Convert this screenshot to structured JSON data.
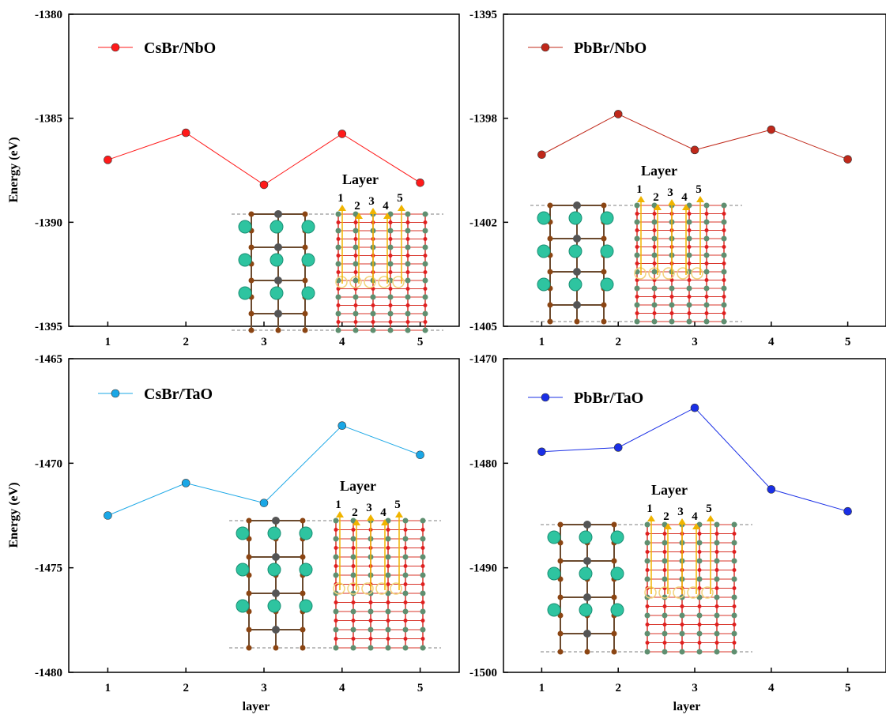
{
  "chart_data": [
    {
      "type": "line",
      "series": [
        {
          "name": "CsBr/NbO",
          "color": "#ff1a1a",
          "x": [
            1,
            2,
            3,
            4,
            5
          ],
          "y": [
            -1387.0,
            -1385.7,
            -1388.2,
            -1385.75,
            -1388.1
          ]
        }
      ],
      "xlim": [
        0.5,
        5.5
      ],
      "ylim": [
        -1395,
        -1380
      ],
      "yticks": [
        "-1380",
        "-1385",
        "-1390",
        "-1395"
      ],
      "xticks": [
        "1",
        "2",
        "3",
        "4",
        "5"
      ],
      "ylabel": "Energy (eV)",
      "xlabel": "",
      "inset": {
        "title": "Layer",
        "labels": [
          "1",
          "2",
          "3",
          "4",
          "5"
        ]
      }
    },
    {
      "type": "line",
      "series": [
        {
          "name": "PbBr/NbO",
          "color": "#c0281a",
          "x": [
            1,
            2,
            3,
            4,
            5
          ],
          "y": [
            -1399.5,
            -1398.2,
            -1399.35,
            -1398.7,
            -1399.65
          ]
        }
      ],
      "xlim": [
        0.5,
        5.5
      ],
      "ylim": [
        -1405,
        -1395
      ],
      "yticks": [
        "-1395",
        "-1398",
        "-1402",
        "-1405"
      ],
      "xticks": [
        "1",
        "2",
        "3",
        "4",
        "5"
      ],
      "ylabel": "",
      "xlabel": "",
      "inset": {
        "title": "Layer",
        "labels": [
          "1",
          "2",
          "3",
          "4",
          "5"
        ]
      }
    },
    {
      "type": "line",
      "series": [
        {
          "name": "CsBr/TaO",
          "color": "#1aa7e6",
          "x": [
            1,
            2,
            3,
            4,
            5
          ],
          "y": [
            -1472.5,
            -1470.95,
            -1471.9,
            -1468.2,
            -1469.6
          ]
        }
      ],
      "xlim": [
        0.5,
        5.5
      ],
      "ylim": [
        -1480,
        -1465
      ],
      "yticks": [
        "-1465",
        "-1470",
        "-1475",
        "-1480"
      ],
      "xticks": [
        "1",
        "2",
        "3",
        "4",
        "5"
      ],
      "ylabel": "Energy (eV)",
      "xlabel": "layer",
      "inset": {
        "title": "Layer",
        "labels": [
          "1",
          "2",
          "3",
          "4",
          "5"
        ]
      }
    },
    {
      "type": "line",
      "series": [
        {
          "name": "PbBr/TaO",
          "color": "#1a2fe6",
          "x": [
            1,
            2,
            3,
            4,
            5
          ],
          "y": [
            -1478.9,
            -1478.5,
            -1474.7,
            -1482.5,
            -1484.6
          ]
        }
      ],
      "xlim": [
        0.5,
        5.5
      ],
      "ylim": [
        -1500,
        -1470
      ],
      "yticks": [
        "-1470",
        "-1480",
        "-1490",
        "-1500"
      ],
      "xticks": [
        "1",
        "2",
        "3",
        "4",
        "5"
      ],
      "ylabel": "",
      "xlabel": "layer",
      "inset": {
        "title": "Layer",
        "labels": [
          "1",
          "2",
          "3",
          "4",
          "5"
        ]
      }
    }
  ]
}
